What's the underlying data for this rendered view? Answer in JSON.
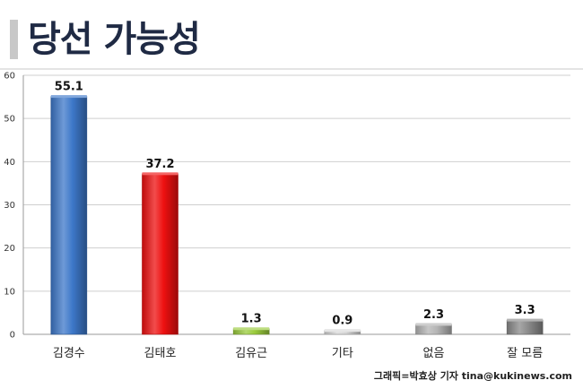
{
  "title": "당선 가능성",
  "credit": "그래픽=박효상 기자 tina@kukinews.com",
  "chart_data": {
    "type": "bar",
    "title": "당선 가능성",
    "categories": [
      "김경수",
      "김태호",
      "김유근",
      "기타",
      "없음",
      "잘 모름"
    ],
    "values": [
      55.1,
      37.2,
      1.3,
      0.9,
      2.3,
      3.3
    ],
    "value_labels": [
      "55.1",
      "37.2",
      "1.3",
      "0.9",
      "2.3",
      "3.3"
    ],
    "y_ticks": [
      "0",
      "10",
      "20",
      "30",
      "40",
      "50",
      "60"
    ],
    "ylim": [
      0,
      60
    ],
    "xlabel": "",
    "ylabel": "",
    "grid": true,
    "legend": "none",
    "colors": [
      "#3d78c9",
      "#ee1010",
      "#9acb3c",
      "#d8d8d8",
      "#b4b4b4",
      "#8a8a8a"
    ]
  }
}
